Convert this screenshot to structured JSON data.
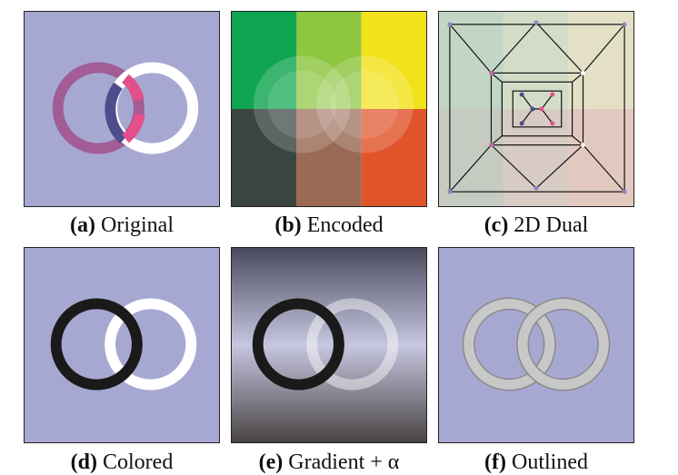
{
  "panels": [
    {
      "key": "a",
      "label": "(a)",
      "caption": "Original"
    },
    {
      "key": "b",
      "label": "(b)",
      "caption": "Encoded"
    },
    {
      "key": "c",
      "label": "(c)",
      "caption": "2D Dual"
    },
    {
      "key": "d",
      "label": "(d)",
      "caption": "Colored"
    },
    {
      "key": "e",
      "label": "(e)",
      "caption": "Gradient + α"
    },
    {
      "key": "f",
      "label": "(f)",
      "caption": "Outlined"
    }
  ],
  "colors": {
    "background": "#a7a8d2",
    "ring_pink": "#a25c96",
    "ring_white": "#ffffff",
    "ring_black": "#1a1a1a",
    "ring_gray": "#c8c8c8",
    "overlap_blue": "#4e4d8c",
    "overlap_pink": "#e34f8b",
    "encoded_grid": [
      "#10a550",
      "#8dc63f",
      "#f2e21b",
      "#3a4540",
      "#9a6a55",
      "#e0542b"
    ]
  }
}
